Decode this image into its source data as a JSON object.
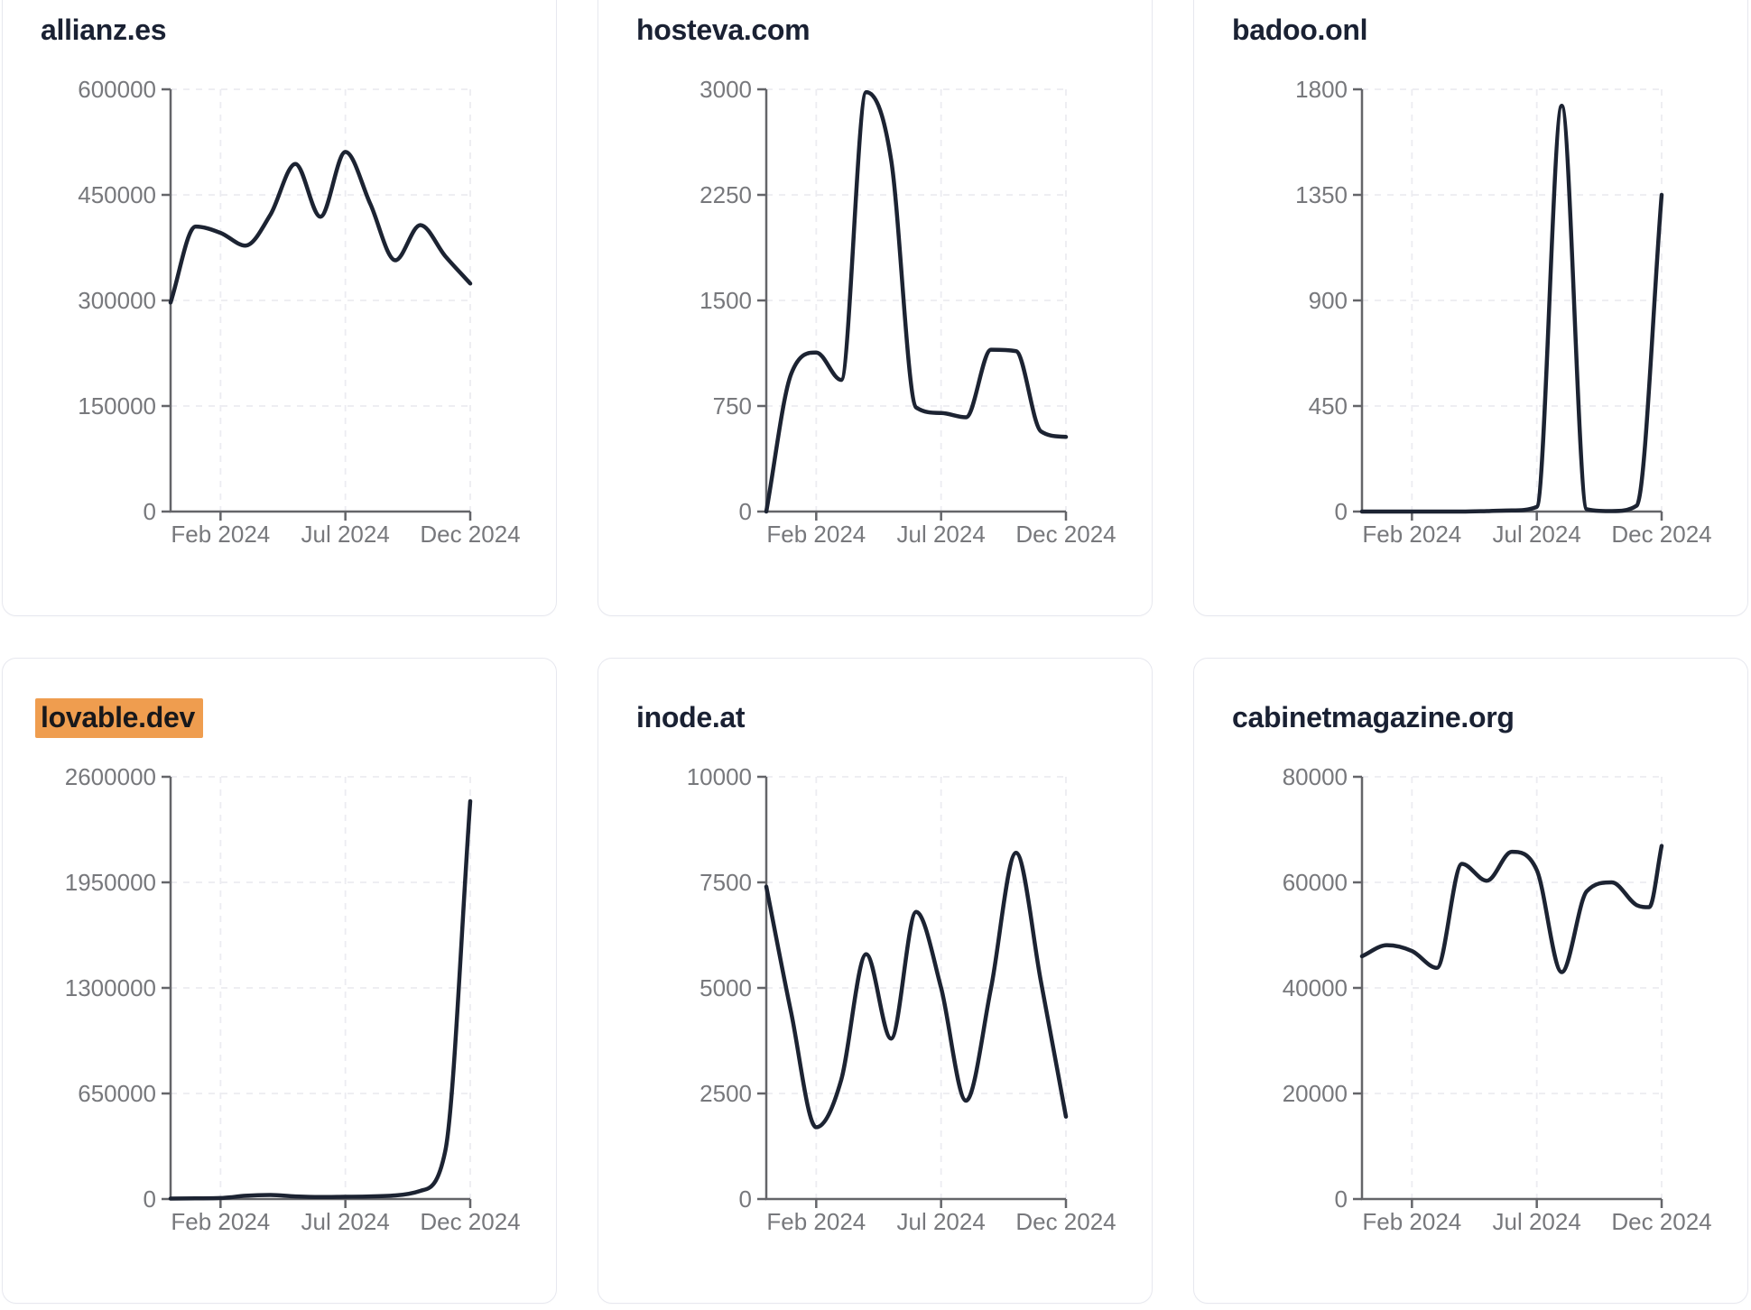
{
  "page": {
    "background": "#ffffff",
    "card_background": "#ffffff",
    "card_border_color": "#e7e8ef",
    "grid_line_color": "#ececf1",
    "axis_color": "#646569",
    "tick_label_color": "#77787c",
    "title_color": "#1a2133",
    "series_line_color": "#1c2332",
    "highlight_color": "#ef9d4f",
    "highlight_text_color": "#18181b"
  },
  "x_axis": {
    "ticks": [
      {
        "month": 2,
        "label": "Feb 2024"
      },
      {
        "month": 7,
        "label": "Jul 2024"
      },
      {
        "month": 12,
        "label": "Dec 2024"
      }
    ],
    "range_months": [
      0,
      12
    ]
  },
  "chart_data": [
    {
      "type": "line",
      "title": "allianz.es",
      "highlighted": false,
      "ylim": [
        0,
        600000
      ],
      "y_ticks": [
        0,
        150000,
        300000,
        450000,
        600000
      ],
      "x_months": [
        0,
        1,
        2,
        3,
        4,
        5,
        6,
        7,
        8,
        9,
        10,
        11,
        12
      ],
      "values": [
        297000,
        405000,
        396000,
        378000,
        422000,
        494000,
        419000,
        511000,
        437000,
        357000,
        407000,
        363000,
        324000
      ]
    },
    {
      "type": "line",
      "title": "hosteva.com",
      "highlighted": false,
      "ylim": [
        0,
        3000
      ],
      "y_ticks": [
        0,
        750,
        1500,
        2250,
        3000
      ],
      "x_months": [
        0,
        1,
        2,
        3,
        4,
        5,
        6,
        7,
        8,
        9,
        10,
        11,
        12
      ],
      "values": [
        0,
        980,
        1130,
        935,
        2980,
        2500,
        740,
        700,
        670,
        1150,
        1140,
        570,
        530
      ]
    },
    {
      "type": "line",
      "title": "badoo.onl",
      "highlighted": false,
      "ylim": [
        0,
        1800
      ],
      "y_ticks": [
        0,
        450,
        900,
        1350,
        1800
      ],
      "x_months": [
        0,
        1,
        2,
        3,
        4,
        5,
        6,
        7,
        8,
        9,
        10,
        11,
        12
      ],
      "values": [
        0,
        0,
        0,
        0,
        0,
        2,
        5,
        20,
        1730,
        10,
        2,
        25,
        1350
      ]
    },
    {
      "type": "line",
      "title": "lovable.dev",
      "highlighted": true,
      "ylim": [
        0,
        2600000
      ],
      "y_ticks": [
        0,
        650000,
        1300000,
        1950000,
        2600000
      ],
      "x_months": [
        0,
        1,
        2,
        3,
        4,
        5,
        6,
        7,
        8,
        9,
        10,
        11,
        12
      ],
      "values": [
        3000,
        4000,
        6000,
        20000,
        25000,
        16000,
        12000,
        14000,
        16000,
        22000,
        50000,
        295000,
        2450000
      ]
    },
    {
      "type": "line",
      "title": "inode.at",
      "highlighted": false,
      "ylim": [
        0,
        10000
      ],
      "y_ticks": [
        0,
        2500,
        5000,
        7500,
        10000
      ],
      "x_months": [
        0,
        1,
        2,
        3,
        4,
        5,
        6,
        7,
        8,
        9,
        10,
        11,
        12
      ],
      "values": [
        7400,
        4400,
        1700,
        2820,
        5800,
        3800,
        6800,
        5000,
        2330,
        5000,
        8200,
        5150,
        1950
      ]
    },
    {
      "type": "line",
      "title": "cabinetmagazine.org",
      "highlighted": false,
      "ylim": [
        0,
        80000
      ],
      "y_ticks": [
        0,
        20000,
        40000,
        60000,
        80000
      ],
      "x_months": [
        0,
        1,
        2,
        3,
        4,
        5,
        6,
        7,
        8,
        9,
        10,
        11,
        11.5,
        12
      ],
      "values": [
        46000,
        48100,
        47000,
        43800,
        63500,
        60300,
        65800,
        62300,
        43000,
        58300,
        60000,
        55700,
        55300,
        66900
      ]
    }
  ]
}
